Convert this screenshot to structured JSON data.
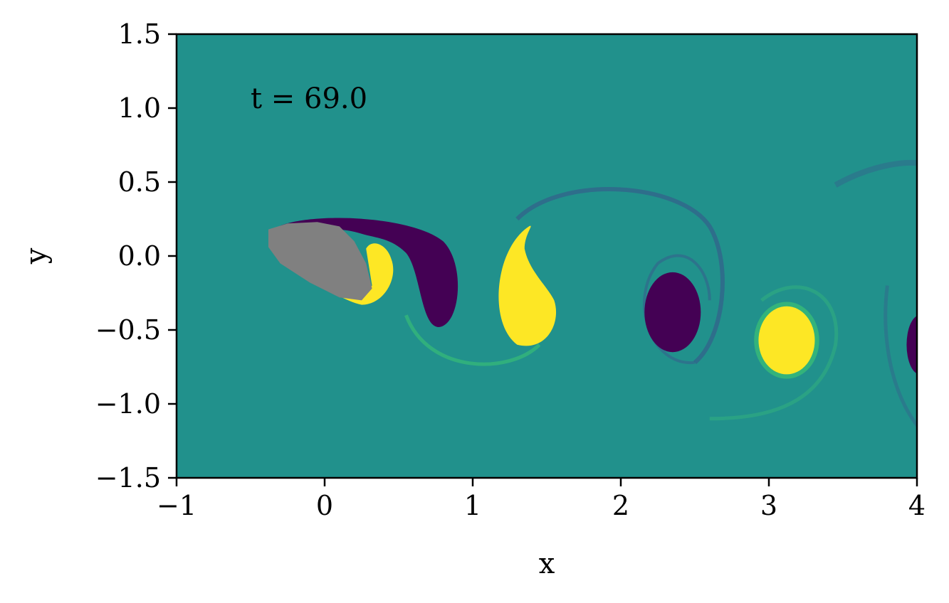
{
  "chart_data": {
    "type": "heatmap",
    "title": "",
    "xlabel": "x",
    "ylabel": "y",
    "xlim": [
      -1,
      4
    ],
    "ylim": [
      -1.5,
      1.5
    ],
    "x_ticks": [
      {
        "value": -1,
        "label": "−1"
      },
      {
        "value": 0,
        "label": "0"
      },
      {
        "value": 1,
        "label": "1"
      },
      {
        "value": 2,
        "label": "2"
      },
      {
        "value": 3,
        "label": "3"
      },
      {
        "value": 4,
        "label": "4"
      }
    ],
    "y_ticks": [
      {
        "value": 1.5,
        "label": "1.5"
      },
      {
        "value": 1.0,
        "label": "1.0"
      },
      {
        "value": 0.5,
        "label": "0.5"
      },
      {
        "value": 0.0,
        "label": "0.0"
      },
      {
        "value": -0.5,
        "label": "−0.5"
      },
      {
        "value": -1.0,
        "label": "−1.0"
      },
      {
        "value": -1.5,
        "label": "−1.5"
      }
    ],
    "annotation": "t = 69.0",
    "grid": false,
    "colormap": "viridis",
    "colors": {
      "background": "#21918c",
      "negative_vorticity": "#440154",
      "positive_vorticity": "#fde725",
      "body": "#808080",
      "thin_trail": "#3b528b",
      "positive_trail": "#35b779"
    },
    "vortices": [
      {
        "sign": "negative",
        "center": [
          0.7,
          -0.2
        ]
      },
      {
        "sign": "positive",
        "center": [
          1.4,
          -0.25
        ]
      },
      {
        "sign": "negative",
        "center": [
          2.35,
          -0.38
        ]
      },
      {
        "sign": "positive",
        "center": [
          3.12,
          -0.57
        ]
      },
      {
        "sign": "negative",
        "center": [
          4.0,
          -0.6
        ]
      }
    ],
    "body_outline": [
      [
        -0.38,
        0.18
      ],
      [
        -0.25,
        0.22
      ],
      [
        -0.05,
        0.23
      ],
      [
        0.1,
        0.2
      ],
      [
        0.2,
        0.1
      ],
      [
        0.28,
        -0.05
      ],
      [
        0.32,
        -0.22
      ],
      [
        0.25,
        -0.3
      ],
      [
        0.1,
        -0.28
      ],
      [
        -0.1,
        -0.18
      ],
      [
        -0.3,
        -0.05
      ],
      [
        -0.38,
        0.06
      ]
    ]
  }
}
